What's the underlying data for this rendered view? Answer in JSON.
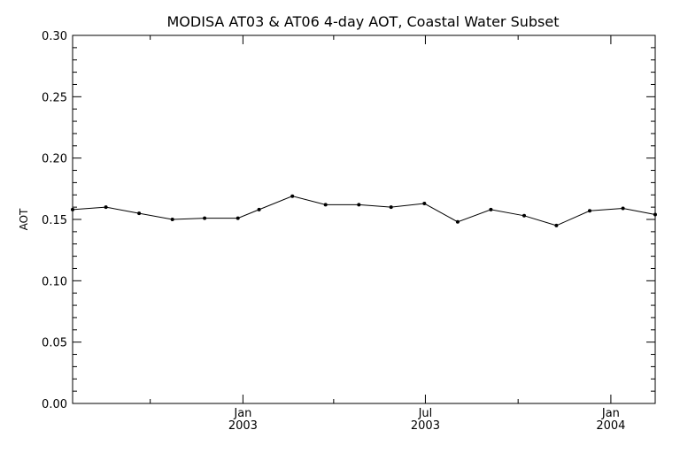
{
  "chart_data": {
    "type": "line",
    "title": "MODISA AT03 & AT06 4-day AOT, Coastal Water Subset",
    "xlabel": "",
    "ylabel": "AOT",
    "ylim": [
      0.0,
      0.3
    ],
    "yticks": [
      "0.00",
      "0.05",
      "0.10",
      "0.15",
      "0.20",
      "0.25",
      "0.30"
    ],
    "xlim": [
      "2002-07-16",
      "2004-02-14"
    ],
    "xticks": [
      {
        "date": "2003-01-01",
        "month": "Jan",
        "year": "2003"
      },
      {
        "date": "2003-07-01",
        "month": "Jul",
        "year": "2003"
      },
      {
        "date": "2004-01-01",
        "month": "Jan",
        "year": "2004"
      }
    ],
    "grid": false,
    "series": [
      {
        "x": [
          "2002-07-16",
          "2002-08-18",
          "2002-09-20",
          "2002-10-23",
          "2002-11-24",
          "2002-12-27",
          "2003-01-17",
          "2003-02-19",
          "2003-03-24",
          "2003-04-26",
          "2003-05-28",
          "2003-06-30",
          "2003-08-02",
          "2003-09-04",
          "2003-10-07",
          "2003-11-08",
          "2003-12-11",
          "2004-01-13",
          "2004-02-14"
        ],
        "values": [
          0.158,
          0.16,
          0.155,
          0.15,
          0.151,
          0.151,
          0.158,
          0.169,
          0.162,
          0.162,
          0.16,
          0.163,
          0.148,
          0.158,
          0.153,
          0.145,
          0.157,
          0.159,
          0.154
        ]
      }
    ]
  }
}
